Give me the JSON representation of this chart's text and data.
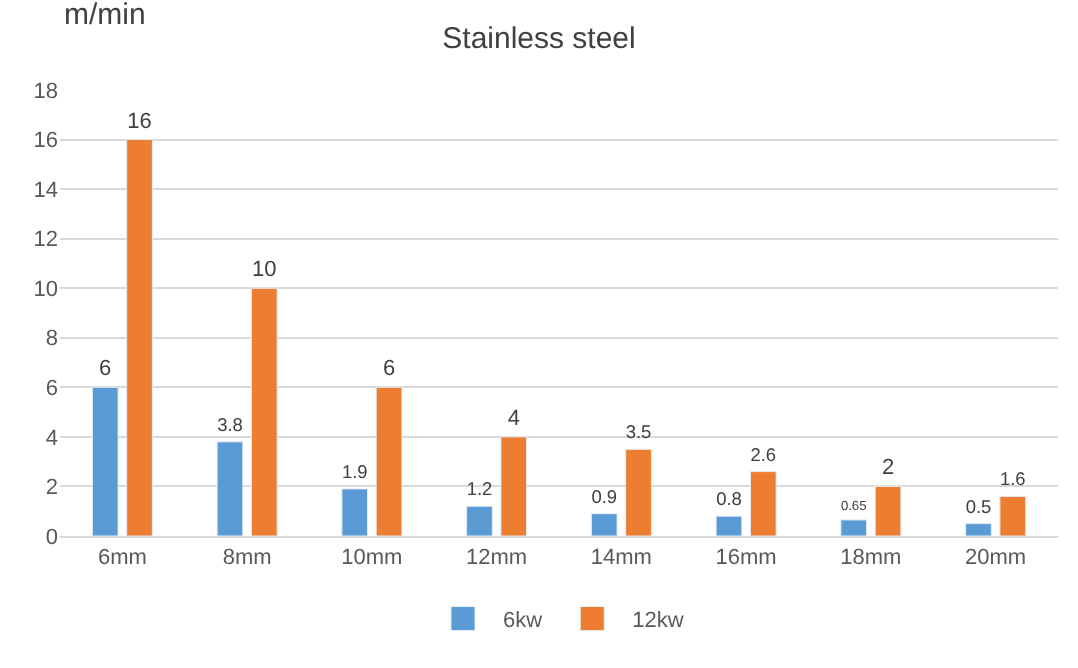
{
  "chart_data": {
    "type": "bar",
    "title": "Stainless steel",
    "ylabel": "m/min",
    "categories": [
      "6mm",
      "8mm",
      "10mm",
      "12mm",
      "14mm",
      "16mm",
      "18mm",
      "20mm"
    ],
    "series": [
      {
        "name": "6kw",
        "color": "#5b9bd5",
        "values": [
          6,
          3.8,
          1.9,
          1.2,
          0.9,
          0.8,
          0.65,
          0.5
        ]
      },
      {
        "name": "12kw",
        "color": "#ed7d31",
        "values": [
          16,
          10,
          6,
          4,
          3.5,
          2.6,
          2,
          1.6
        ]
      }
    ],
    "ylim": [
      0,
      18
    ],
    "yticks": [
      0,
      2,
      4,
      6,
      8,
      10,
      12,
      14,
      16,
      18
    ],
    "grid": "y",
    "legend": "bottom",
    "data_labels": true
  }
}
